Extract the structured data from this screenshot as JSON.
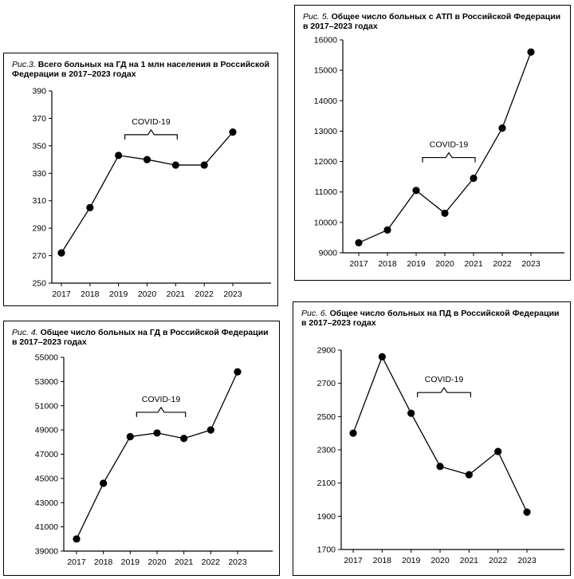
{
  "chart_data": [
    {
      "id": "p3",
      "type": "line",
      "figure_label": "Рис.3.",
      "title": "Всего больных на ГД на 1 млн населения в Российской Федерации в 2017–2023 годах",
      "categories": [
        "2017",
        "2018",
        "2019",
        "2020",
        "2021",
        "2022",
        "2023"
      ],
      "values": [
        272,
        305,
        343,
        340,
        336,
        336,
        360
      ],
      "ylim": [
        250,
        390
      ],
      "yticks": [
        250,
        270,
        290,
        310,
        330,
        350,
        370,
        390
      ],
      "annotation": {
        "text": "COVID-19",
        "from": "2019",
        "to": "2021"
      }
    },
    {
      "id": "p5",
      "type": "line",
      "figure_label": "Рис. 5.",
      "title": "Общее число больных с АТП в Российской Федерации в 2017–2023 годах",
      "categories": [
        "2017",
        "2018",
        "2019",
        "2020",
        "2021",
        "2022",
        "2023"
      ],
      "values": [
        9330,
        9750,
        11050,
        10300,
        11450,
        13100,
        15600
      ],
      "ylim": [
        9000,
        16000
      ],
      "yticks": [
        9000,
        10000,
        11000,
        12000,
        13000,
        14000,
        15000,
        16000
      ],
      "annotation": {
        "text": "COVID-19",
        "from": "2019",
        "to": "2021"
      }
    },
    {
      "id": "p4",
      "type": "line",
      "figure_label": "Рис. 4.",
      "title": "Общее число больных на ГД в Российской Федерации в 2017–2023 годах",
      "categories": [
        "2017",
        "2018",
        "2019",
        "2020",
        "2021",
        "2022",
        "2023"
      ],
      "values": [
        40000,
        44600,
        48450,
        48750,
        48300,
        49000,
        53800
      ],
      "ylim": [
        39000,
        55000
      ],
      "yticks": [
        39000,
        41000,
        43000,
        45000,
        47000,
        49000,
        51000,
        53000,
        55000
      ],
      "annotation": {
        "text": "COVID-19",
        "from": "2019",
        "to": "2021"
      }
    },
    {
      "id": "p6",
      "type": "line",
      "figure_label": "Рис. 6.",
      "title": "Общее число больных на ПД в Российской Федерации в 2017–2023 годах",
      "categories": [
        "2017",
        "2018",
        "2019",
        "2020",
        "2021",
        "2022",
        "2023"
      ],
      "values": [
        2400,
        2860,
        2520,
        2200,
        2150,
        2290,
        1925
      ],
      "ylim": [
        1700,
        2900
      ],
      "yticks": [
        1700,
        1900,
        2100,
        2300,
        2500,
        2700,
        2900
      ],
      "annotation": {
        "text": "COVID-19",
        "from": "2019",
        "to": "2021"
      }
    }
  ]
}
